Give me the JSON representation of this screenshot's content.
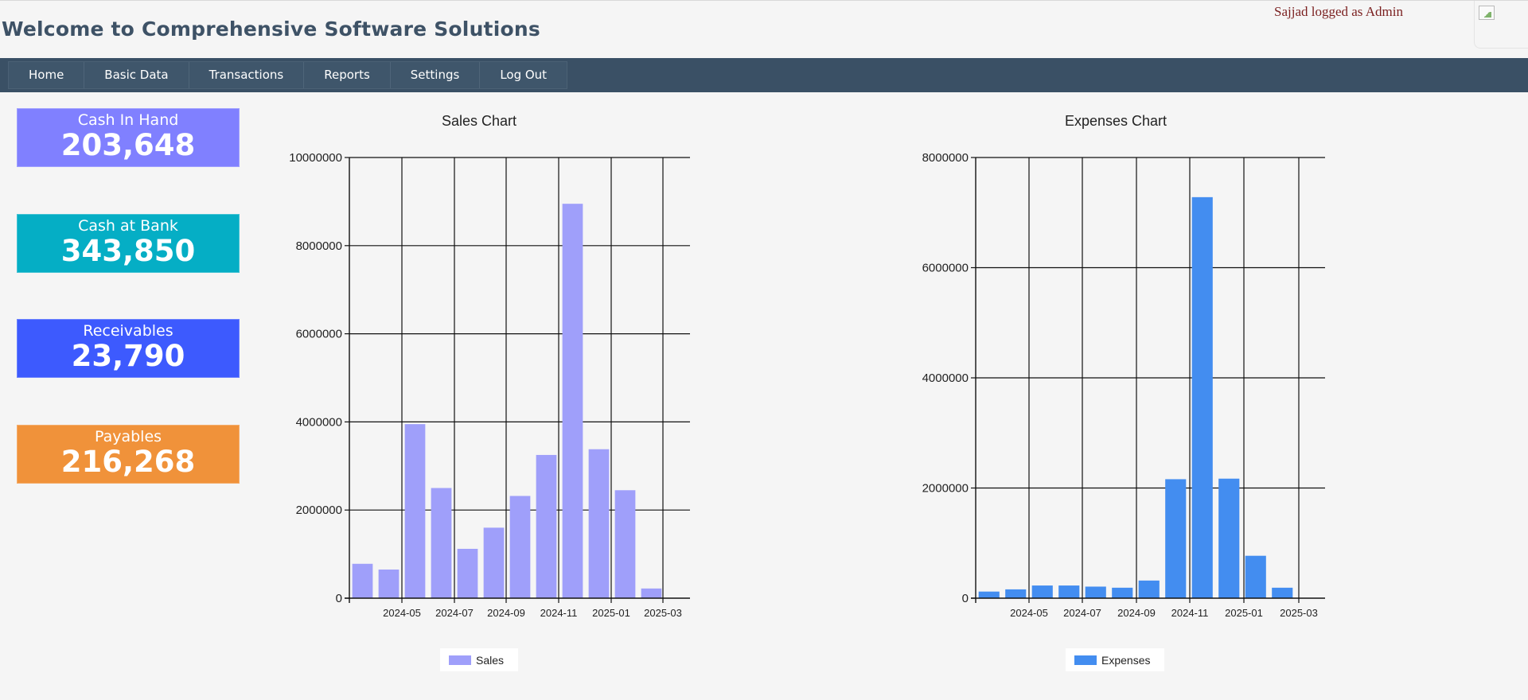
{
  "header": {
    "title": "Welcome to Comprehensive Software Solutions",
    "user_text": "Sajjad logged as Admin"
  },
  "nav": {
    "items": [
      {
        "label": "Home",
        "name": "nav-home"
      },
      {
        "label": "Basic Data",
        "name": "nav-basic-data"
      },
      {
        "label": "Transactions",
        "name": "nav-transactions"
      },
      {
        "label": "Reports",
        "name": "nav-reports"
      },
      {
        "label": "Settings",
        "name": "nav-settings"
      },
      {
        "label": "Log Out",
        "name": "nav-log-out"
      }
    ]
  },
  "cards": [
    {
      "label": "Cash In Hand",
      "value": "203,648",
      "color": "#8080ff"
    },
    {
      "label": "Cash at Bank",
      "value": "343,850",
      "color": "#05aec5"
    },
    {
      "label": "Receivables",
      "value": "23,790",
      "color": "#3d5afe"
    },
    {
      "label": "Payables",
      "value": "216,268",
      "color": "#f0923a"
    }
  ],
  "chart_data": [
    {
      "type": "bar",
      "title": "Sales Chart",
      "legend": "Sales",
      "color": "#9f9ffa",
      "ylim": [
        0,
        10000000
      ],
      "yticks": [
        0,
        2000000,
        4000000,
        6000000,
        8000000,
        10000000
      ],
      "xtick_labels": [
        "2024-05",
        "2024-07",
        "2024-09",
        "2024-11",
        "2025-01",
        "2025-03"
      ],
      "values": [
        780000,
        650000,
        3950000,
        2500000,
        1120000,
        1600000,
        2320000,
        3250000,
        8950000,
        3380000,
        2450000,
        220000
      ],
      "grid": true,
      "legend_position": "bottom-center"
    },
    {
      "type": "bar",
      "title": "Expenses Chart",
      "legend": "Expenses",
      "color": "#438df0",
      "ylim": [
        0,
        8000000
      ],
      "yticks": [
        0,
        2000000,
        4000000,
        6000000,
        8000000
      ],
      "xtick_labels": [
        "2024-05",
        "2024-07",
        "2024-09",
        "2024-11",
        "2025-01",
        "2025-03"
      ],
      "values": [
        120000,
        160000,
        230000,
        230000,
        210000,
        190000,
        320000,
        2160000,
        7280000,
        2170000,
        770000,
        190000
      ],
      "grid": true,
      "legend_position": "bottom-center"
    }
  ]
}
